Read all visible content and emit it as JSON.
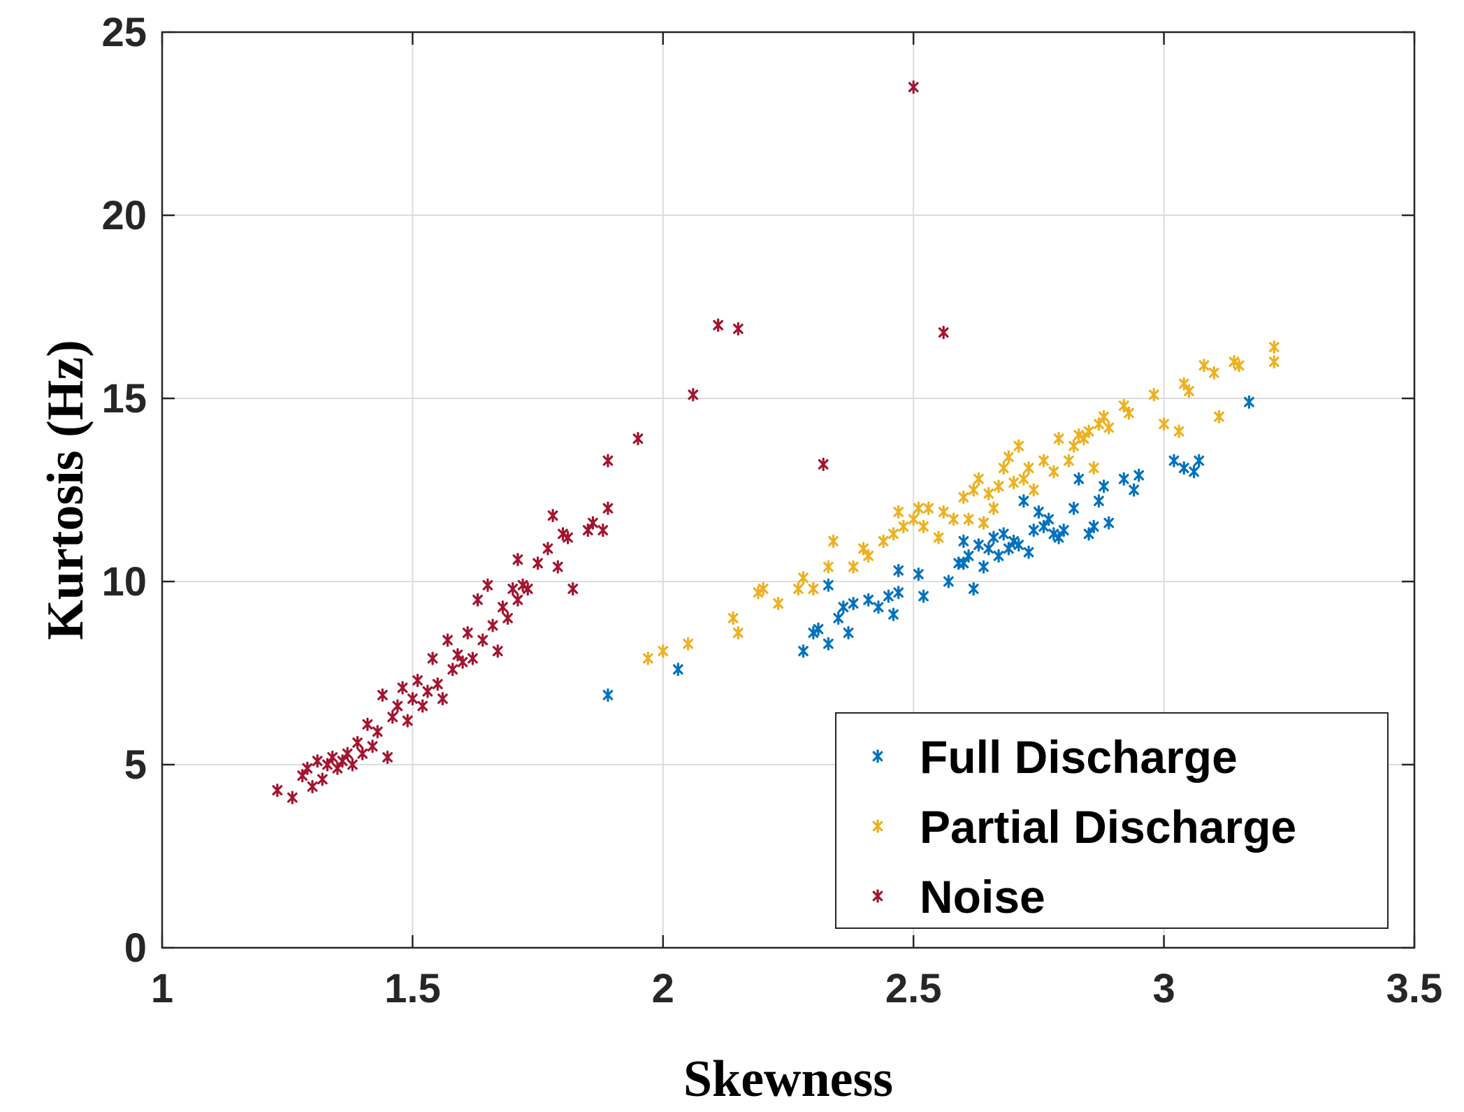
{
  "chart_data": {
    "type": "scatter",
    "title": "",
    "xlabel": "Skewness",
    "ylabel": "Kurtosis (Hz)",
    "xlim": [
      1,
      3.5
    ],
    "ylim": [
      0,
      25
    ],
    "xticks": [
      "1",
      "1.5",
      "2",
      "2.5",
      "3",
      "3.5"
    ],
    "yticks": [
      "0",
      "5",
      "10",
      "15",
      "20",
      "25"
    ],
    "xtick_values": [
      1,
      1.5,
      2,
      2.5,
      3,
      3.5
    ],
    "ytick_values": [
      0,
      5,
      10,
      15,
      20,
      25
    ],
    "grid": true,
    "legend_position": "bottom-right",
    "marker": "*",
    "series": [
      {
        "name": "Full Discharge",
        "color": "#0072BD",
        "points": [
          [
            1.89,
            6.9
          ],
          [
            2.03,
            7.6
          ],
          [
            2.28,
            8.1
          ],
          [
            2.3,
            8.6
          ],
          [
            2.31,
            8.7
          ],
          [
            2.33,
            8.3
          ],
          [
            2.33,
            9.9
          ],
          [
            2.35,
            9.0
          ],
          [
            2.36,
            9.3
          ],
          [
            2.37,
            8.6
          ],
          [
            2.38,
            9.4
          ],
          [
            2.41,
            9.5
          ],
          [
            2.43,
            9.3
          ],
          [
            2.45,
            9.6
          ],
          [
            2.46,
            9.1
          ],
          [
            2.47,
            9.7
          ],
          [
            2.47,
            10.3
          ],
          [
            2.51,
            10.2
          ],
          [
            2.52,
            9.6
          ],
          [
            2.57,
            10.0
          ],
          [
            2.59,
            10.5
          ],
          [
            2.6,
            10.5
          ],
          [
            2.6,
            11.1
          ],
          [
            2.61,
            10.7
          ],
          [
            2.62,
            9.8
          ],
          [
            2.63,
            11.0
          ],
          [
            2.64,
            10.4
          ],
          [
            2.64,
            11.6
          ],
          [
            2.65,
            10.9
          ],
          [
            2.66,
            11.2
          ],
          [
            2.67,
            10.7
          ],
          [
            2.68,
            11.3
          ],
          [
            2.69,
            10.9
          ],
          [
            2.7,
            11.1
          ],
          [
            2.71,
            11.0
          ],
          [
            2.72,
            12.2
          ],
          [
            2.73,
            10.8
          ],
          [
            2.74,
            11.4
          ],
          [
            2.75,
            11.9
          ],
          [
            2.76,
            11.5
          ],
          [
            2.77,
            11.7
          ],
          [
            2.78,
            11.3
          ],
          [
            2.79,
            11.2
          ],
          [
            2.8,
            11.4
          ],
          [
            2.82,
            12.0
          ],
          [
            2.83,
            12.8
          ],
          [
            2.85,
            11.3
          ],
          [
            2.86,
            11.5
          ],
          [
            2.87,
            12.2
          ],
          [
            2.88,
            12.6
          ],
          [
            2.89,
            11.6
          ],
          [
            2.92,
            12.8
          ],
          [
            2.94,
            12.5
          ],
          [
            2.95,
            12.9
          ],
          [
            3.02,
            13.3
          ],
          [
            3.04,
            13.1
          ],
          [
            3.06,
            13.0
          ],
          [
            3.07,
            13.3
          ],
          [
            3.17,
            14.9
          ]
        ]
      },
      {
        "name": "Partial Discharge",
        "color": "#EDB120",
        "points": [
          [
            1.97,
            7.9
          ],
          [
            2.0,
            8.1
          ],
          [
            2.05,
            8.3
          ],
          [
            2.14,
            9.0
          ],
          [
            2.15,
            8.6
          ],
          [
            2.19,
            9.7
          ],
          [
            2.2,
            9.8
          ],
          [
            2.23,
            9.4
          ],
          [
            2.27,
            9.8
          ],
          [
            2.28,
            10.1
          ],
          [
            2.3,
            9.8
          ],
          [
            2.33,
            10.4
          ],
          [
            2.34,
            11.1
          ],
          [
            2.38,
            10.4
          ],
          [
            2.4,
            10.9
          ],
          [
            2.41,
            10.7
          ],
          [
            2.44,
            11.1
          ],
          [
            2.46,
            11.3
          ],
          [
            2.47,
            11.9
          ],
          [
            2.48,
            11.5
          ],
          [
            2.5,
            11.7
          ],
          [
            2.51,
            12.0
          ],
          [
            2.52,
            11.5
          ],
          [
            2.53,
            12.0
          ],
          [
            2.55,
            11.2
          ],
          [
            2.56,
            11.9
          ],
          [
            2.58,
            11.7
          ],
          [
            2.6,
            12.3
          ],
          [
            2.61,
            11.7
          ],
          [
            2.62,
            12.5
          ],
          [
            2.63,
            12.8
          ],
          [
            2.64,
            11.6
          ],
          [
            2.65,
            12.4
          ],
          [
            2.66,
            12.0
          ],
          [
            2.67,
            12.6
          ],
          [
            2.68,
            13.1
          ],
          [
            2.69,
            13.4
          ],
          [
            2.7,
            12.7
          ],
          [
            2.71,
            13.7
          ],
          [
            2.72,
            12.8
          ],
          [
            2.73,
            13.1
          ],
          [
            2.74,
            12.5
          ],
          [
            2.76,
            13.3
          ],
          [
            2.78,
            13.0
          ],
          [
            2.79,
            13.9
          ],
          [
            2.81,
            13.3
          ],
          [
            2.82,
            13.7
          ],
          [
            2.83,
            14.0
          ],
          [
            2.84,
            13.9
          ],
          [
            2.85,
            14.1
          ],
          [
            2.86,
            13.1
          ],
          [
            2.87,
            14.3
          ],
          [
            2.88,
            14.5
          ],
          [
            2.89,
            14.2
          ],
          [
            2.92,
            14.8
          ],
          [
            2.93,
            14.6
          ],
          [
            2.98,
            15.1
          ],
          [
            3.0,
            14.3
          ],
          [
            3.03,
            14.1
          ],
          [
            3.04,
            15.4
          ],
          [
            3.05,
            15.2
          ],
          [
            3.08,
            15.9
          ],
          [
            3.1,
            15.7
          ],
          [
            3.11,
            14.5
          ],
          [
            3.14,
            16.0
          ],
          [
            3.15,
            15.9
          ],
          [
            3.22,
            16.4
          ],
          [
            3.22,
            16.0
          ]
        ]
      },
      {
        "name": "Noise",
        "color": "#A2142F",
        "points": [
          [
            1.23,
            4.3
          ],
          [
            1.26,
            4.1
          ],
          [
            1.28,
            4.7
          ],
          [
            1.29,
            4.9
          ],
          [
            1.3,
            4.4
          ],
          [
            1.31,
            5.1
          ],
          [
            1.32,
            4.6
          ],
          [
            1.33,
            5.0
          ],
          [
            1.34,
            5.2
          ],
          [
            1.35,
            4.9
          ],
          [
            1.36,
            5.1
          ],
          [
            1.37,
            5.3
          ],
          [
            1.38,
            5.0
          ],
          [
            1.39,
            5.6
          ],
          [
            1.4,
            5.3
          ],
          [
            1.41,
            6.1
          ],
          [
            1.42,
            5.5
          ],
          [
            1.43,
            5.9
          ],
          [
            1.44,
            6.9
          ],
          [
            1.45,
            5.2
          ],
          [
            1.46,
            6.3
          ],
          [
            1.47,
            6.6
          ],
          [
            1.48,
            7.1
          ],
          [
            1.49,
            6.2
          ],
          [
            1.5,
            6.8
          ],
          [
            1.51,
            7.3
          ],
          [
            1.52,
            6.6
          ],
          [
            1.53,
            7.0
          ],
          [
            1.54,
            7.9
          ],
          [
            1.55,
            7.2
          ],
          [
            1.56,
            6.8
          ],
          [
            1.57,
            8.4
          ],
          [
            1.58,
            7.6
          ],
          [
            1.59,
            8.0
          ],
          [
            1.6,
            7.8
          ],
          [
            1.61,
            8.6
          ],
          [
            1.62,
            7.9
          ],
          [
            1.63,
            9.5
          ],
          [
            1.64,
            8.4
          ],
          [
            1.65,
            9.9
          ],
          [
            1.66,
            8.8
          ],
          [
            1.67,
            8.1
          ],
          [
            1.68,
            9.3
          ],
          [
            1.69,
            9.0
          ],
          [
            1.7,
            9.8
          ],
          [
            1.71,
            9.5
          ],
          [
            1.71,
            10.6
          ],
          [
            1.72,
            9.9
          ],
          [
            1.73,
            9.8
          ],
          [
            1.75,
            10.5
          ],
          [
            1.77,
            10.9
          ],
          [
            1.78,
            11.8
          ],
          [
            1.79,
            10.4
          ],
          [
            1.8,
            11.3
          ],
          [
            1.81,
            11.2
          ],
          [
            1.82,
            9.8
          ],
          [
            1.85,
            11.4
          ],
          [
            1.86,
            11.6
          ],
          [
            1.88,
            11.4
          ],
          [
            1.89,
            12.0
          ],
          [
            1.89,
            13.3
          ],
          [
            1.95,
            13.9
          ],
          [
            2.06,
            15.1
          ],
          [
            2.11,
            17.0
          ],
          [
            2.15,
            16.9
          ],
          [
            2.32,
            13.2
          ],
          [
            2.5,
            23.5
          ],
          [
            2.56,
            16.8
          ]
        ]
      }
    ]
  }
}
